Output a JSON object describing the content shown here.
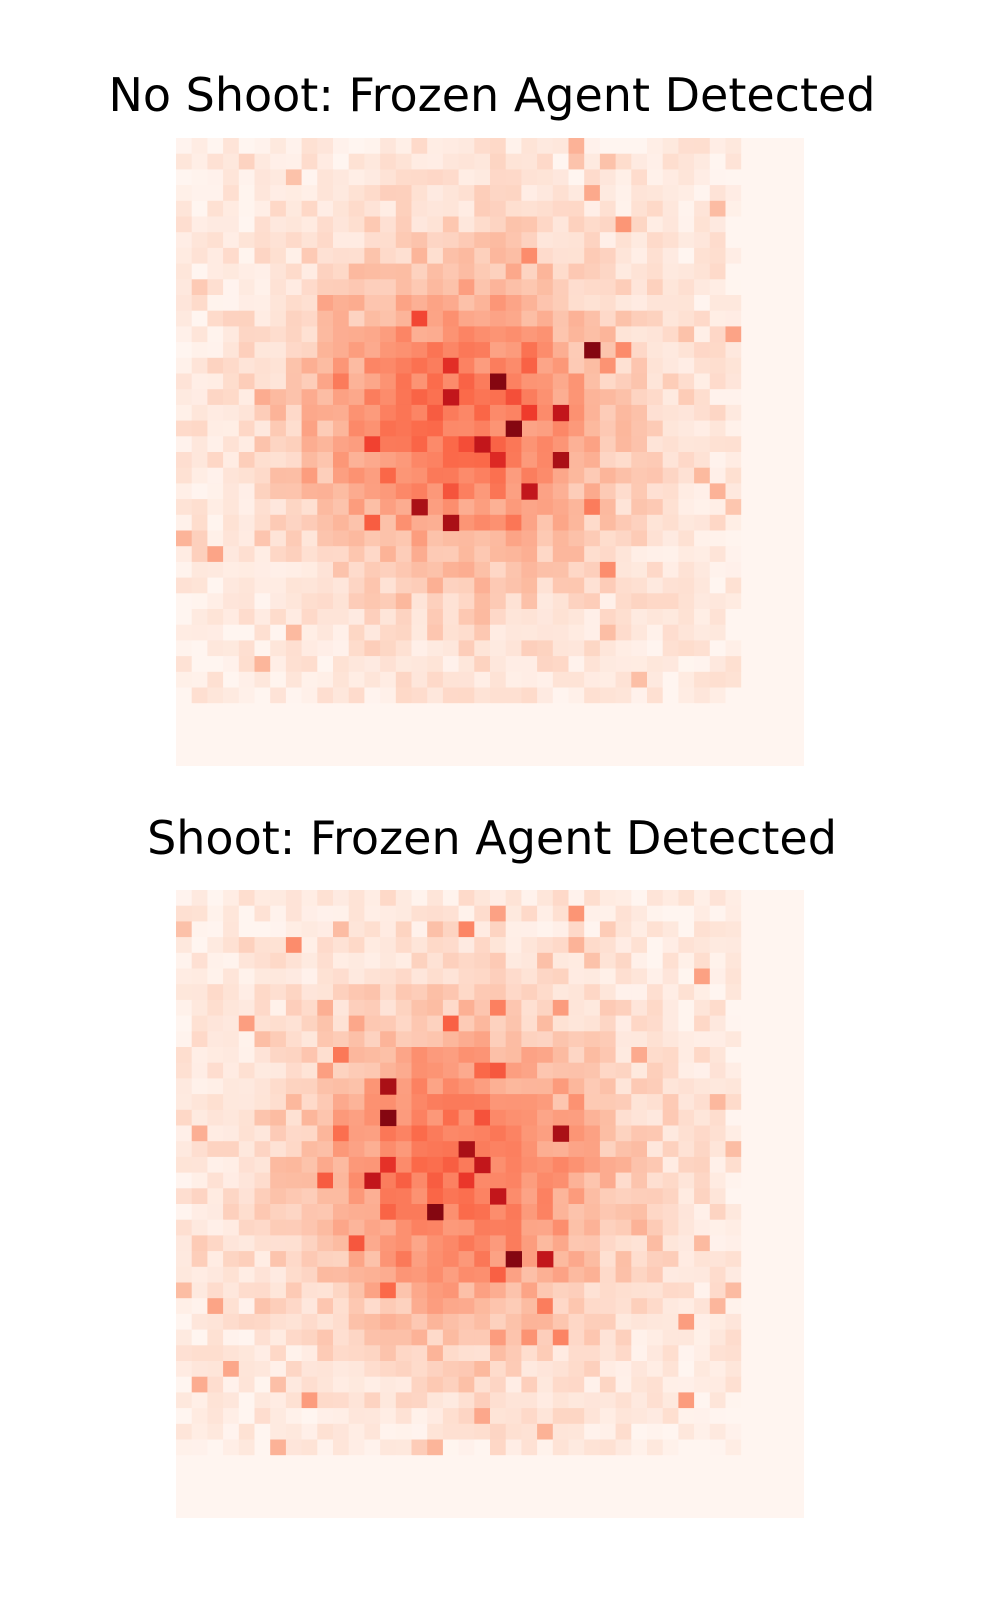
{
  "chart_data": [
    {
      "type": "heatmap",
      "title": "No Shoot: Frozen Agent Detected",
      "grid": false,
      "axes_visible": false,
      "colormap": "Reds",
      "grid_rows": 40,
      "grid_cols": 40,
      "active_rows": 36,
      "active_cols": 36,
      "hotspot_cells": [
        [
          16,
          17
        ],
        [
          24,
          17
        ],
        [
          13,
          26
        ],
        [
          19,
          19
        ],
        [
          20,
          24
        ],
        [
          18,
          21
        ],
        [
          22,
          22
        ],
        [
          23,
          15
        ],
        [
          15,
          20
        ],
        [
          17,
          24
        ]
      ],
      "seed": 1
    },
    {
      "type": "heatmap",
      "title": "Shoot: Frozen Agent Detected",
      "grid": false,
      "axes_visible": false,
      "colormap": "Reds",
      "grid_rows": 40,
      "grid_cols": 40,
      "active_rows": 36,
      "active_cols": 36,
      "hotspot_cells": [
        [
          17,
          19
        ],
        [
          12,
          13
        ],
        [
          14,
          13
        ],
        [
          19,
          20
        ],
        [
          15,
          24
        ],
        [
          23,
          21
        ],
        [
          23,
          23
        ],
        [
          16,
          18
        ],
        [
          20,
          16
        ],
        [
          18,
          12
        ]
      ],
      "seed": 7
    }
  ]
}
